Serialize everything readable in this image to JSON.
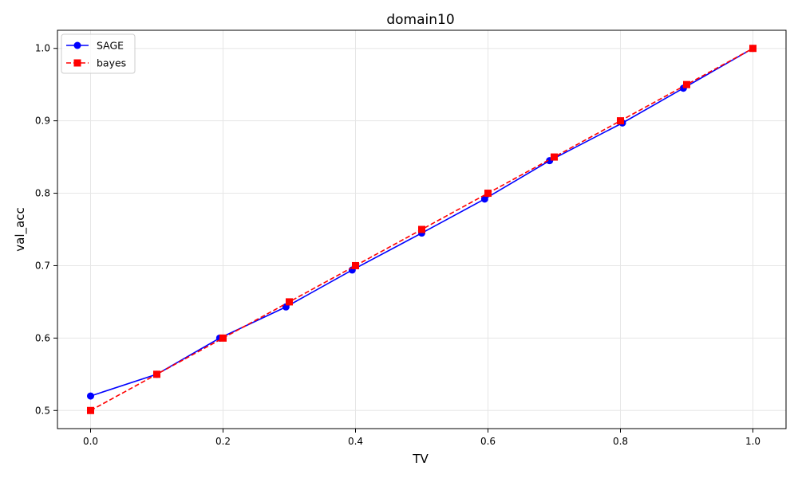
{
  "chart_data": {
    "type": "line",
    "title": "domain10",
    "xlabel": "TV",
    "ylabel": "val_acc",
    "xlim": [
      -0.05,
      1.05
    ],
    "ylim": [
      0.475,
      1.025
    ],
    "x_ticks": [
      0.0,
      0.2,
      0.4,
      0.6,
      0.8,
      1.0
    ],
    "x_tick_labels": [
      "0.0",
      "0.2",
      "0.4",
      "0.6",
      "0.8",
      "1.0"
    ],
    "y_ticks": [
      0.5,
      0.6,
      0.7,
      0.8,
      0.9,
      1.0
    ],
    "y_tick_labels": [
      "0.5",
      "0.6",
      "0.7",
      "0.8",
      "0.9",
      "1.0"
    ],
    "grid": true,
    "legend_position": "top-left",
    "series": [
      {
        "name": "SAGE",
        "color": "#0000ff",
        "marker": "circle",
        "line_style": "solid",
        "x": [
          0.0,
          0.1,
          0.195,
          0.295,
          0.395,
          0.5,
          0.595,
          0.693,
          0.803,
          0.895,
          1.0
        ],
        "y": [
          0.52,
          0.55,
          0.6,
          0.643,
          0.694,
          0.745,
          0.792,
          0.845,
          0.897,
          0.945,
          1.0
        ]
      },
      {
        "name": "bayes",
        "color": "#ff0000",
        "marker": "square",
        "line_style": "dashed",
        "x": [
          0.0,
          0.1,
          0.2,
          0.3,
          0.4,
          0.5,
          0.6,
          0.7,
          0.8,
          0.9,
          1.0
        ],
        "y": [
          0.5,
          0.55,
          0.6,
          0.65,
          0.7,
          0.75,
          0.8,
          0.85,
          0.9,
          0.95,
          1.0
        ]
      }
    ]
  }
}
